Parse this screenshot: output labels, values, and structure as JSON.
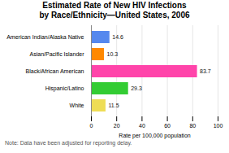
{
  "chart_data": {
    "type": "bar",
    "title": "Estimated Rate of New HIV Infections\nby Race/Ethnicity—United States, 2006",
    "categories": [
      "American Indian/Alaska Native",
      "Asian/Pacific Islander",
      "Black/African American",
      "Hispanic/Latino",
      "White"
    ],
    "values": [
      14.6,
      10.3,
      83.7,
      29.3,
      11.5
    ],
    "colors": [
      "#5588EE",
      "#FF8800",
      "#FF44AA",
      "#33CC33",
      "#EEDD55"
    ],
    "orientation": "horizontal",
    "xlabel": "Rate per 100,000 population",
    "xlim": [
      0,
      100
    ],
    "xticks": [
      0,
      20,
      40,
      60,
      80,
      100
    ],
    "grid": true,
    "data_labels": true,
    "annotations": [
      "Note: Data have been adjusted for reporting delay."
    ]
  }
}
